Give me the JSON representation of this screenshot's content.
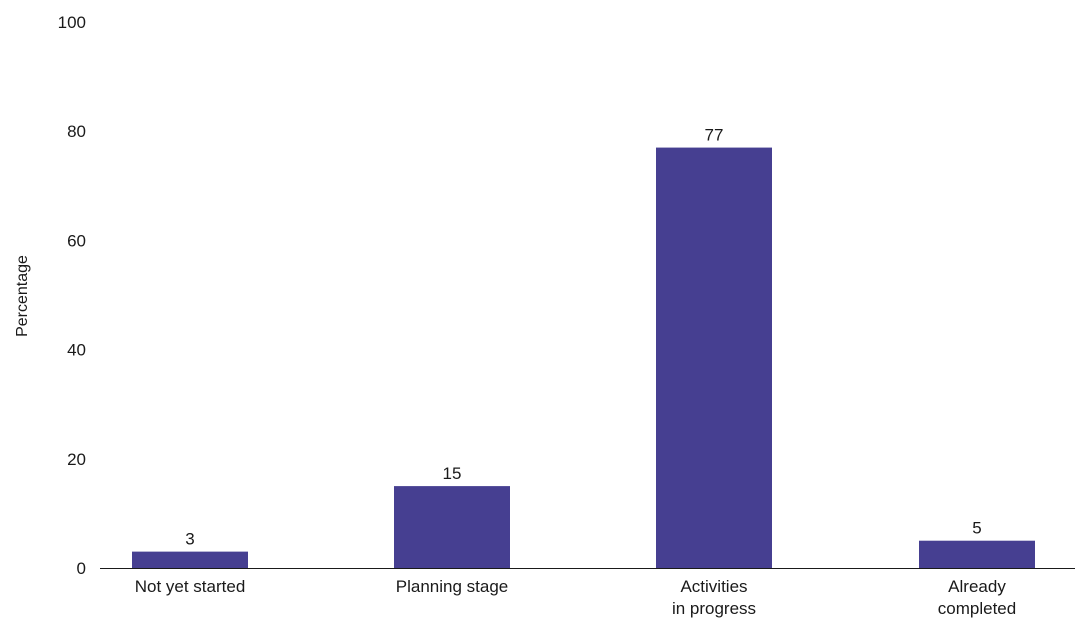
{
  "chart_data": {
    "type": "bar",
    "title": "",
    "xlabel": "",
    "ylabel": "Percentage",
    "categories": [
      [
        "Not yet started"
      ],
      [
        "Planning stage"
      ],
      [
        "Activities",
        "in progress"
      ],
      [
        "Already",
        "completed"
      ]
    ],
    "values": [
      3,
      15,
      77,
      5
    ],
    "value_labels": [
      "3",
      "15",
      "77",
      "5"
    ],
    "ylim": [
      0,
      100
    ],
    "yticks": [
      0,
      20,
      40,
      60,
      80,
      100
    ],
    "grid": false,
    "legend": "none",
    "bar_color": "#463f91",
    "text_color": "#1a1a1a"
  }
}
